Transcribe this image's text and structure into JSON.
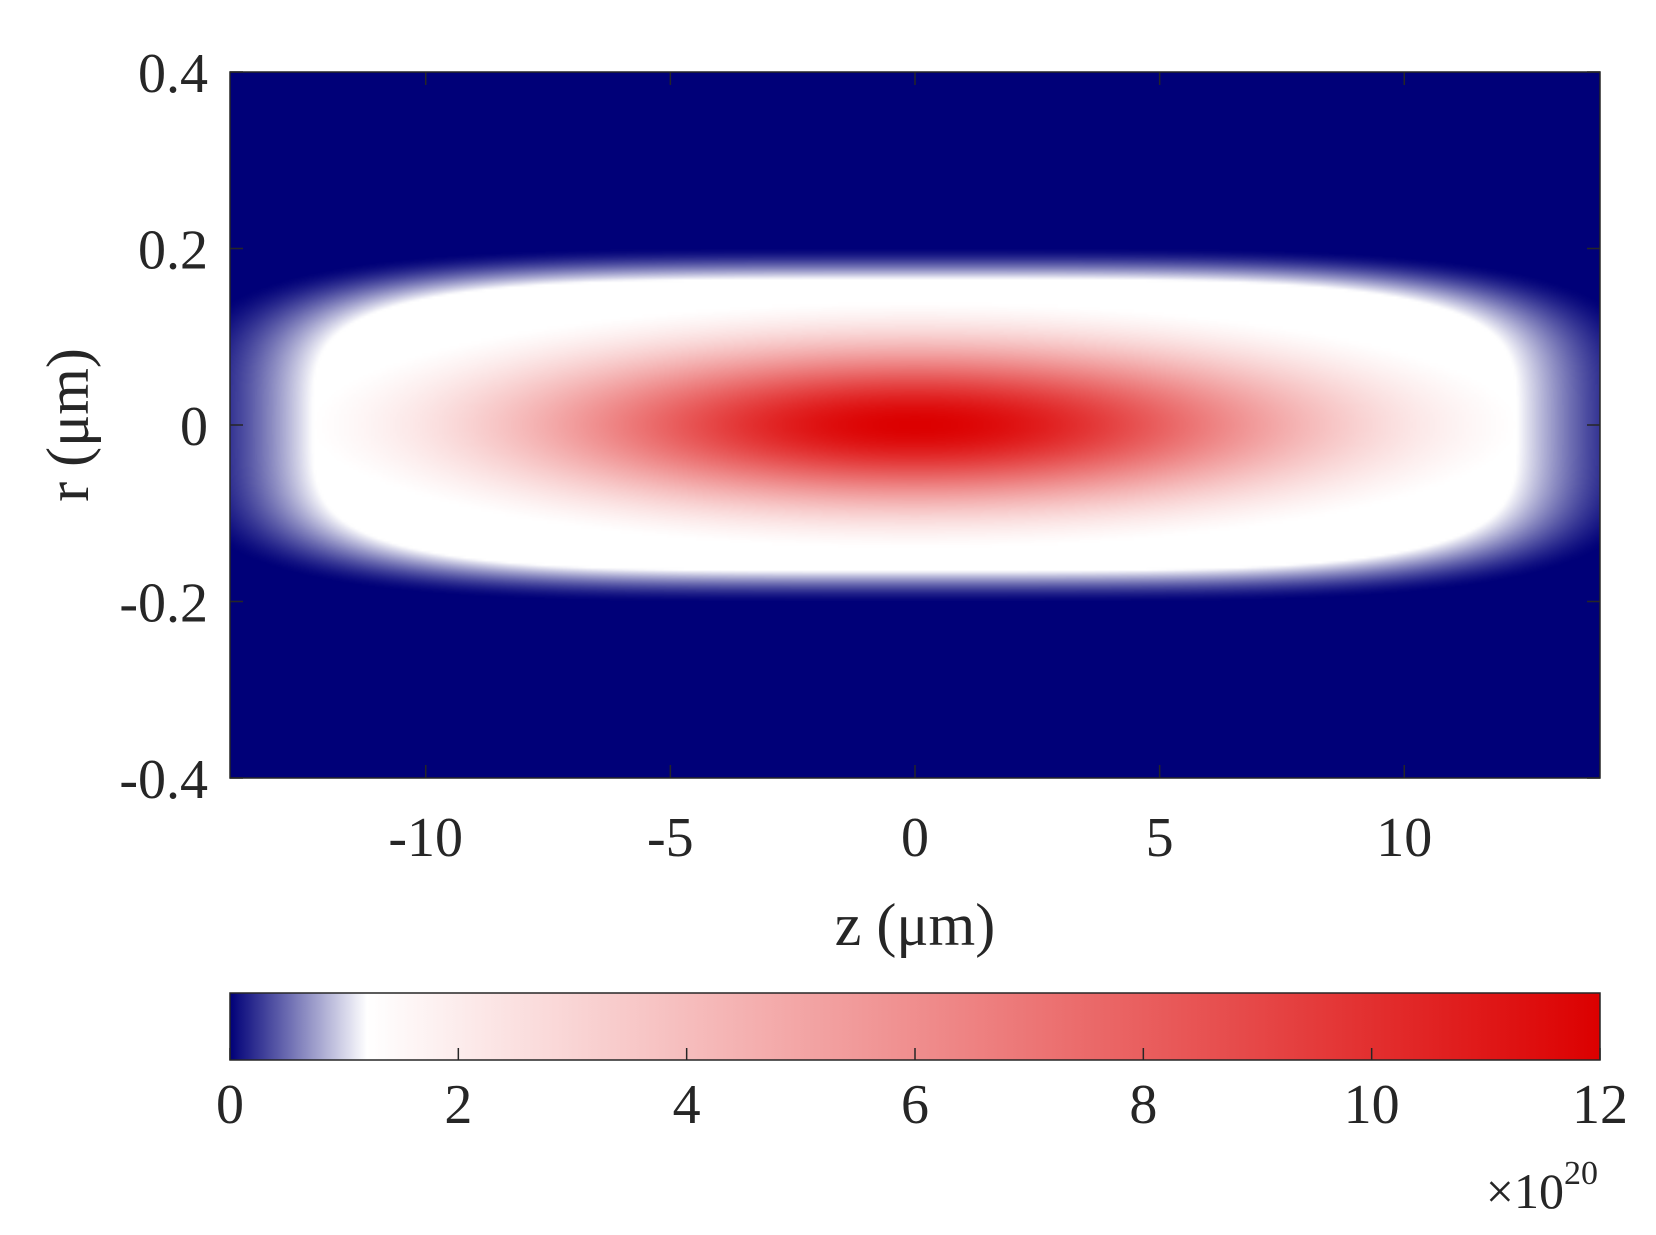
{
  "chart_data": {
    "type": "heatmap",
    "title": "",
    "xlabel": "z (μm)",
    "ylabel": "r (μm)",
    "xlim": [
      -14,
      14
    ],
    "ylim": [
      -0.4,
      0.4
    ],
    "x_ticks": [
      -10,
      -5,
      0,
      5,
      10
    ],
    "x_tick_labels": [
      "-10",
      "-5",
      "0",
      "5",
      "10"
    ],
    "y_ticks": [
      0.4,
      0.2,
      0,
      -0.2,
      -0.4
    ],
    "y_tick_labels": [
      "0.4",
      "0.2",
      "0",
      "-0.2",
      "-0.4"
    ],
    "field": {
      "shape": "elongated ellipsoid centered at origin",
      "peak_value": 1.2e+21,
      "peak_at": {
        "z": 0,
        "r": 0
      },
      "boundary_half_length_z": 12.3,
      "boundary_half_width_r": 0.165,
      "outside_value": 0
    },
    "colorbar": {
      "placement": "bottom",
      "min": 0,
      "max": 12,
      "ticks": [
        0,
        2,
        4,
        6,
        8,
        10,
        12
      ],
      "tick_labels": [
        "0",
        "2",
        "4",
        "6",
        "8",
        "10",
        "12"
      ],
      "multiplier_base": "×10",
      "multiplier_exponent": "20",
      "colormap": [
        {
          "value": 0,
          "color": "#000078"
        },
        {
          "value": 1.2,
          "color": "#ffffff"
        },
        {
          "value": 12,
          "color": "#dc0000"
        }
      ]
    }
  }
}
